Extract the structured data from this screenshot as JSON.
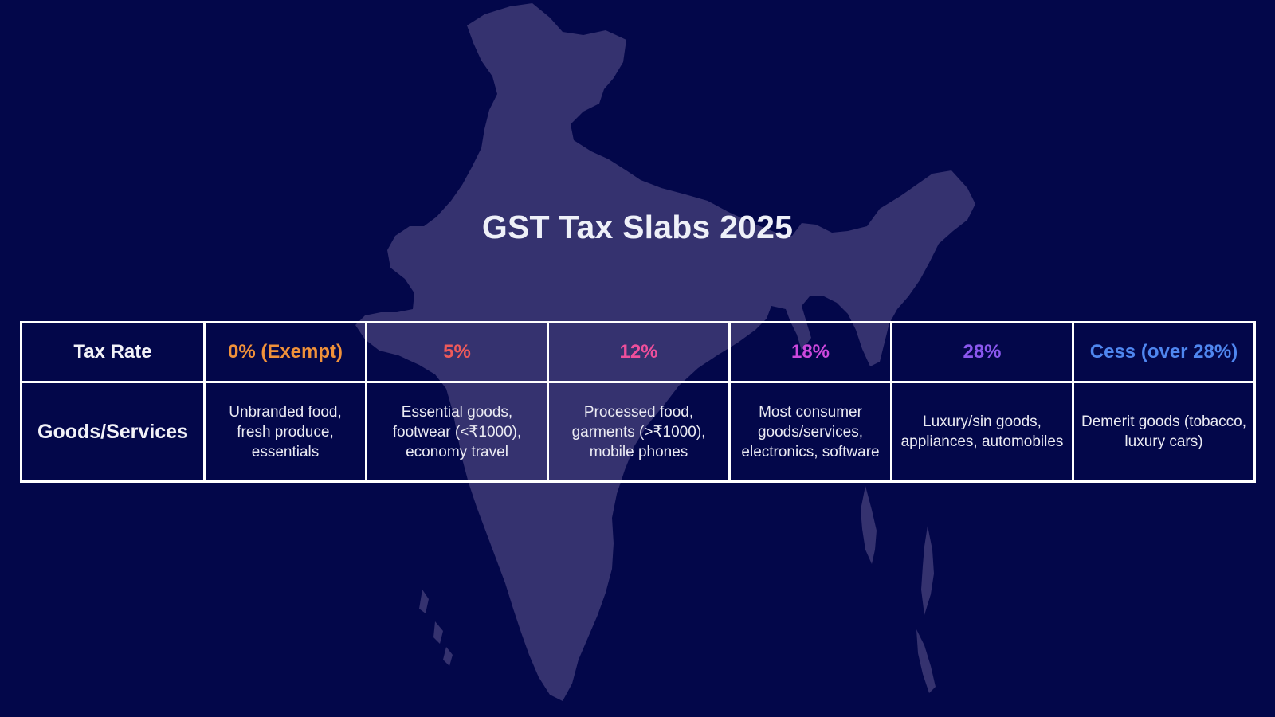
{
  "title": "GST Tax Slabs 2025",
  "table": {
    "row_headers": {
      "rate": "Tax Rate",
      "goods": "Goods/Services"
    },
    "columns": [
      {
        "rate": "0% (Exempt)",
        "color": "#f0913a",
        "goods": "Unbranded food, fresh produce, essentials"
      },
      {
        "rate": "5%",
        "color": "#ef5a5a",
        "goods": "Essential goods, footwear (<₹1000), economy travel"
      },
      {
        "rate": "12%",
        "color": "#ee4f9b",
        "goods": "Processed food, garments (>₹1000), mobile phones"
      },
      {
        "rate": "18%",
        "color": "#cc48dc",
        "goods": "Most consumer goods/services, electronics, software"
      },
      {
        "rate": "28%",
        "color": "#8a57ee",
        "goods": "Luxury/sin goods, appliances, automobiles"
      },
      {
        "rate": "Cess (over 28%)",
        "color": "#4f86ef",
        "goods": "Demerit goods (tobacco, luxury cars)"
      }
    ]
  },
  "background": {
    "color": "#03074a",
    "map_icon": "india-map-silhouette",
    "map_color": "#35326f"
  }
}
